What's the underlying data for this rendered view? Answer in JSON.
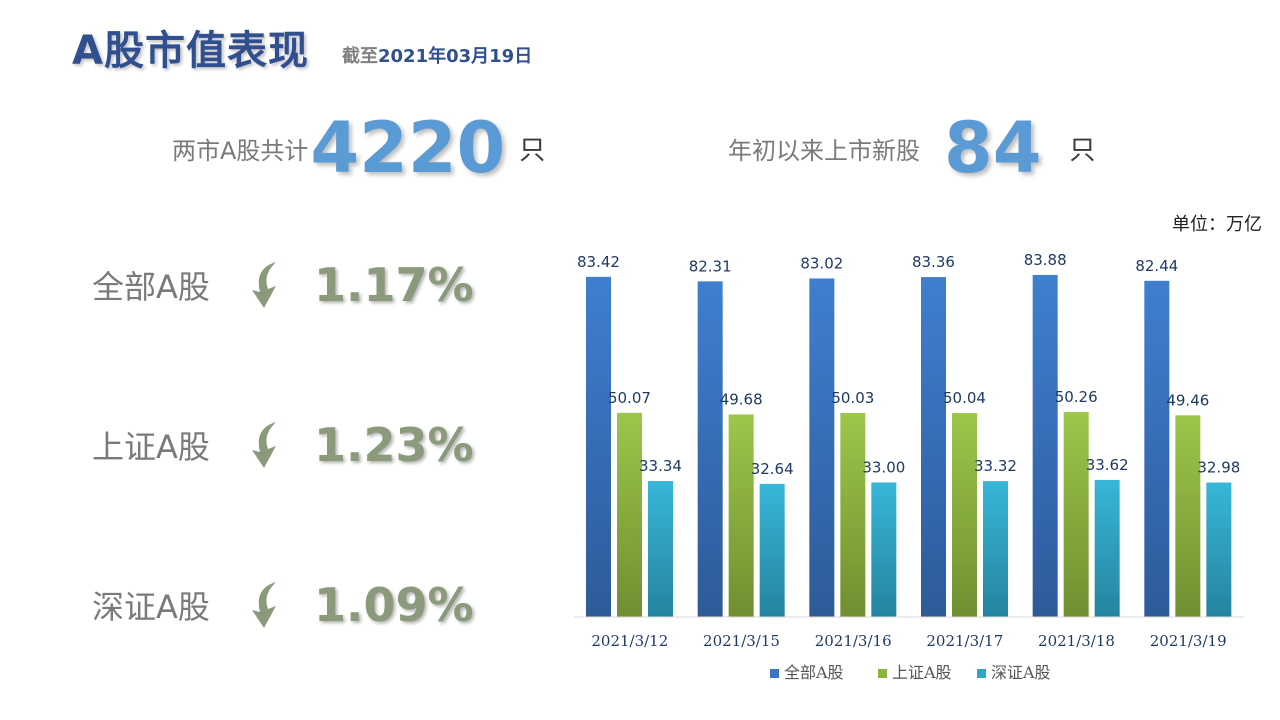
{
  "header": {
    "title": "A股市值表现",
    "date_prefix": "截至",
    "date_value": "2021年03月19日"
  },
  "stats": [
    {
      "label": "两市A股共计",
      "value": "4220",
      "unit": "只"
    },
    {
      "label": "年初以来上市新股",
      "value": "84",
      "unit": "只"
    }
  ],
  "changes": [
    {
      "name": "全部A股",
      "direction": "down",
      "icon": "curved-arrow-down-icon",
      "value": "1.17%"
    },
    {
      "name": "上证A股",
      "direction": "down",
      "icon": "curved-arrow-down-icon",
      "value": "1.23%"
    },
    {
      "name": "深证A股",
      "direction": "down",
      "icon": "curved-arrow-down-icon",
      "value": "1.09%"
    }
  ],
  "colors": {
    "title": "#2f4f8f",
    "stat_number": "#5b9bd5",
    "change_value": "#8a9a7b",
    "series_all": "#3a75c4",
    "series_sh": "#8cb33f",
    "series_sz": "#2ea6c9"
  },
  "chart_data": {
    "type": "bar",
    "unit_label": "单位：万亿",
    "categories": [
      "2021/3/12",
      "2021/3/15",
      "2021/3/16",
      "2021/3/17",
      "2021/3/18",
      "2021/3/19"
    ],
    "series": [
      {
        "name": "全部A股",
        "values": [
          83.42,
          82.31,
          83.02,
          83.36,
          83.88,
          82.44
        ]
      },
      {
        "name": "上证A股",
        "values": [
          50.07,
          49.68,
          50.03,
          50.04,
          50.26,
          49.46
        ]
      },
      {
        "name": "深证A股",
        "values": [
          33.34,
          32.64,
          33.0,
          33.32,
          33.62,
          32.98
        ]
      }
    ],
    "data_labels": [
      [
        "83.42",
        "82.31",
        "83.02",
        "83.36",
        "83.88",
        "82.44"
      ],
      [
        "50.07",
        "49.68",
        "50.03",
        "50.04",
        "50.26",
        "49.46"
      ],
      [
        "33.34",
        "32.64",
        "33.00",
        "33.32",
        "33.62",
        "32.98"
      ]
    ],
    "ylim": [
      0,
      90
    ],
    "grid": false,
    "legend": "bottom"
  }
}
